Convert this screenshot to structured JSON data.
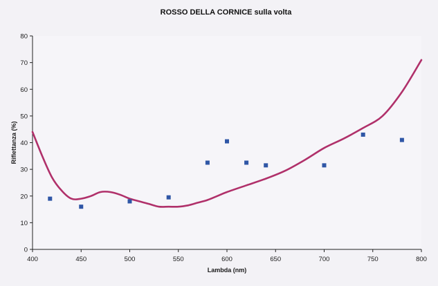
{
  "chart_data": {
    "type": "scatter",
    "title": "ROSSO DELLA CORNICE sulla volta",
    "xlabel": "Lambda (nm)",
    "ylabel": "Riflettanza (%)",
    "xlim": [
      400,
      800
    ],
    "ylim": [
      0,
      80
    ],
    "xticks": [
      400,
      450,
      500,
      550,
      600,
      650,
      700,
      750,
      800
    ],
    "yticks": [
      0,
      10,
      20,
      30,
      40,
      50,
      60,
      70,
      80
    ],
    "grid": false,
    "legend": "none",
    "series": [
      {
        "kind": "points",
        "color": "#2f56a6",
        "x": [
          418,
          450,
          500,
          540,
          580,
          600,
          620,
          640,
          700,
          740,
          780
        ],
        "y": [
          19,
          16,
          18,
          19.5,
          32.5,
          40.5,
          32.5,
          31.5,
          31.5,
          43,
          41
        ]
      },
      {
        "kind": "line",
        "color": "#b0306a",
        "x": [
          400,
          410,
          420,
          430,
          440,
          450,
          460,
          470,
          480,
          490,
          500,
          510,
          520,
          530,
          540,
          550,
          560,
          570,
          580,
          590,
          600,
          620,
          640,
          660,
          680,
          700,
          720,
          740,
          760,
          780,
          800
        ],
        "y": [
          44,
          35,
          27,
          22,
          19,
          19,
          20,
          21.5,
          21.5,
          20.5,
          19,
          18,
          17,
          16,
          16,
          16,
          16.5,
          17.5,
          18.5,
          20,
          21.5,
          24,
          26.5,
          29.5,
          33.5,
          38,
          41.5,
          45.5,
          50,
          59,
          71
        ]
      }
    ]
  }
}
